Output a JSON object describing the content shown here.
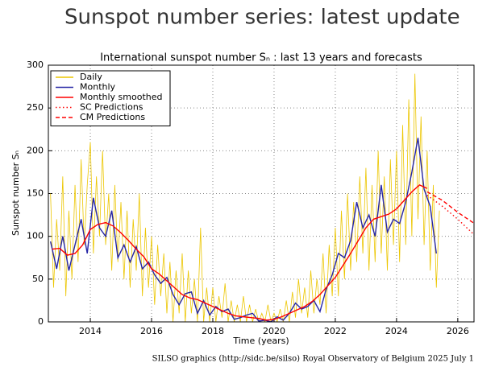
{
  "page_title": "Sunspot number series: latest update",
  "chart_data": {
    "type": "line",
    "title": "International sunspot number Sₙ : last 13 years and forecasts",
    "x_label": "Time (years)",
    "y_label": "Sunspot number Sₙ",
    "footer": "SILSO graphics (http://sidc.be/silso)  Royal Observatory of Belgium  2025 July 1",
    "xlim": [
      2012.63,
      2026.53
    ],
    "ylim": [
      0,
      300
    ],
    "xticks": [
      2014,
      2016,
      2018,
      2020,
      2022,
      2024,
      2026
    ],
    "yticks": [
      0,
      50,
      100,
      150,
      200,
      250,
      300
    ],
    "grid": true,
    "legend": "upper left",
    "series": [
      {
        "name": "Daily",
        "color": "#ecc600",
        "style": "solid",
        "x": [
          2012.7,
          2012.8,
          2012.9,
          2013.0,
          2013.1,
          2013.2,
          2013.3,
          2013.4,
          2013.5,
          2013.6,
          2013.7,
          2013.8,
          2013.9,
          2014.0,
          2014.1,
          2014.2,
          2014.3,
          2014.4,
          2014.5,
          2014.6,
          2014.7,
          2014.8,
          2014.9,
          2015.0,
          2015.1,
          2015.2,
          2015.3,
          2015.4,
          2015.5,
          2015.6,
          2015.7,
          2015.8,
          2015.9,
          2016.0,
          2016.1,
          2016.2,
          2016.3,
          2016.4,
          2016.5,
          2016.6,
          2016.7,
          2016.8,
          2016.9,
          2017.0,
          2017.1,
          2017.2,
          2017.3,
          2017.4,
          2017.5,
          2017.6,
          2017.7,
          2017.8,
          2017.9,
          2018.0,
          2018.1,
          2018.2,
          2018.3,
          2018.4,
          2018.5,
          2018.6,
          2018.7,
          2018.8,
          2018.9,
          2019.0,
          2019.1,
          2019.2,
          2019.3,
          2019.4,
          2019.5,
          2019.6,
          2019.7,
          2019.8,
          2019.9,
          2020.0,
          2020.1,
          2020.2,
          2020.3,
          2020.4,
          2020.5,
          2020.6,
          2020.7,
          2020.8,
          2020.9,
          2021.0,
          2021.1,
          2021.2,
          2021.3,
          2021.4,
          2021.5,
          2021.6,
          2021.7,
          2021.8,
          2021.9,
          2022.0,
          2022.1,
          2022.2,
          2022.3,
          2022.4,
          2022.5,
          2022.6,
          2022.7,
          2022.8,
          2022.9,
          2023.0,
          2023.1,
          2023.2,
          2023.3,
          2023.4,
          2023.5,
          2023.6,
          2023.7,
          2023.8,
          2023.9,
          2024.0,
          2024.1,
          2024.2,
          2024.3,
          2024.4,
          2024.5,
          2024.6,
          2024.7,
          2024.8,
          2024.9,
          2025.0,
          2025.1,
          2025.2,
          2025.3,
          2025.4
        ],
        "values": [
          150,
          40,
          120,
          60,
          170,
          30,
          130,
          50,
          160,
          70,
          190,
          90,
          160,
          210,
          80,
          170,
          100,
          200,
          90,
          150,
          60,
          160,
          70,
          140,
          50,
          130,
          40,
          120,
          60,
          150,
          30,
          110,
          40,
          100,
          20,
          90,
          30,
          80,
          10,
          70,
          0,
          60,
          10,
          80,
          0,
          60,
          10,
          50,
          0,
          110,
          0,
          40,
          0,
          40,
          0,
          30,
          5,
          45,
          0,
          25,
          0,
          20,
          0,
          30,
          0,
          20,
          0,
          15,
          0,
          10,
          0,
          20,
          0,
          10,
          0,
          15,
          0,
          25,
          0,
          35,
          5,
          50,
          10,
          40,
          5,
          60,
          10,
          50,
          20,
          80,
          10,
          90,
          30,
          110,
          30,
          130,
          50,
          150,
          60,
          140,
          70,
          170,
          80,
          180,
          60,
          160,
          70,
          200,
          80,
          170,
          60,
          190,
          90,
          200,
          70,
          230,
          90,
          260,
          100,
          290,
          120,
          240,
          90,
          200,
          60,
          160,
          40,
          130
        ]
      },
      {
        "name": "Monthly",
        "color": "#2626a6",
        "style": "solid",
        "x": [
          2012.7,
          2012.9,
          2013.1,
          2013.3,
          2013.5,
          2013.7,
          2013.9,
          2014.1,
          2014.3,
          2014.5,
          2014.7,
          2014.9,
          2015.1,
          2015.3,
          2015.5,
          2015.7,
          2015.9,
          2016.1,
          2016.3,
          2016.5,
          2016.7,
          2016.9,
          2017.1,
          2017.3,
          2017.5,
          2017.7,
          2017.9,
          2018.1,
          2018.3,
          2018.5,
          2018.7,
          2018.9,
          2019.1,
          2019.3,
          2019.5,
          2019.7,
          2019.9,
          2020.1,
          2020.3,
          2020.5,
          2020.7,
          2020.9,
          2021.1,
          2021.3,
          2021.5,
          2021.7,
          2021.9,
          2022.1,
          2022.3,
          2022.5,
          2022.7,
          2022.9,
          2023.1,
          2023.3,
          2023.5,
          2023.7,
          2023.9,
          2024.1,
          2024.3,
          2024.5,
          2024.7,
          2024.9,
          2025.1,
          2025.3
        ],
        "values": [
          94,
          62,
          100,
          60,
          90,
          120,
          80,
          145,
          110,
          100,
          130,
          75,
          90,
          70,
          88,
          62,
          70,
          55,
          45,
          52,
          32,
          20,
          33,
          35,
          10,
          25,
          8,
          18,
          12,
          15,
          3,
          5,
          8,
          10,
          1,
          2,
          0,
          6,
          2,
          10,
          22,
          15,
          18,
          25,
          12,
          38,
          55,
          80,
          75,
          95,
          140,
          110,
          125,
          100,
          160,
          105,
          120,
          115,
          140,
          175,
          215,
          155,
          135,
          80
        ]
      },
      {
        "name": "Monthly smoothed",
        "color": "#ff0000",
        "style": "solid",
        "x": [
          2012.75,
          2013.0,
          2013.25,
          2013.5,
          2013.75,
          2014.0,
          2014.25,
          2014.5,
          2014.75,
          2015.0,
          2015.25,
          2015.5,
          2015.75,
          2016.0,
          2016.25,
          2016.5,
          2016.75,
          2017.0,
          2017.25,
          2017.5,
          2017.75,
          2018.0,
          2018.25,
          2018.5,
          2018.75,
          2019.0,
          2019.25,
          2019.5,
          2019.75,
          2020.0,
          2020.25,
          2020.5,
          2020.75,
          2021.0,
          2021.25,
          2021.5,
          2021.75,
          2022.0,
          2022.25,
          2022.5,
          2022.75,
          2023.0,
          2023.25,
          2023.5,
          2023.75,
          2024.0,
          2024.25,
          2024.5,
          2024.75,
          2025.0
        ],
        "values": [
          85,
          86,
          78,
          80,
          90,
          108,
          114,
          116,
          112,
          104,
          95,
          85,
          76,
          62,
          56,
          48,
          40,
          32,
          28,
          26,
          22,
          18,
          14,
          10,
          7,
          6,
          5,
          4,
          2,
          3,
          6,
          10,
          14,
          18,
          24,
          32,
          42,
          52,
          66,
          80,
          95,
          110,
          120,
          123,
          126,
          132,
          142,
          152,
          160,
          156
        ]
      },
      {
        "name": "SC Predictions",
        "color": "#ff0000",
        "style": "dotted",
        "x": [
          2025.0,
          2025.5,
          2026.0,
          2026.5
        ],
        "values": [
          148,
          135,
          120,
          103
        ]
      },
      {
        "name": "CM Predictions",
        "color": "#ff0000",
        "style": "dashed",
        "x": [
          2025.0,
          2025.5,
          2026.0,
          2026.5
        ],
        "values": [
          152,
          142,
          128,
          116
        ]
      }
    ]
  }
}
